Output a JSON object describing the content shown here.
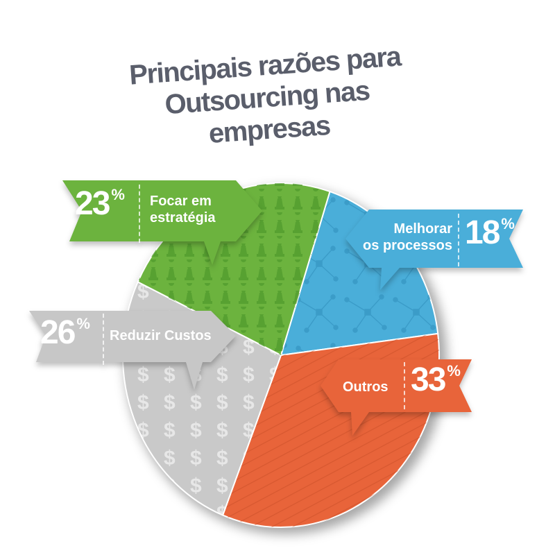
{
  "chart_data": {
    "type": "pie",
    "title": "Principais razões para Outsourcing nas empresas",
    "title_lines": [
      "Principais razões para",
      "Outsourcing nas empresas"
    ],
    "percent_symbol": "%",
    "slices": [
      {
        "label": "Focar em estratégia",
        "label_lines": [
          "Focar em",
          "estratégia"
        ],
        "value": 23,
        "value_text": "23",
        "color": "#6cb33e",
        "pattern": "chess-pawn"
      },
      {
        "label": "Melhorar os processos",
        "label_lines": [
          "Melhorar",
          "os processos"
        ],
        "value": 18,
        "value_text": "18",
        "color": "#4aaed9",
        "pattern": "network"
      },
      {
        "label": "Outros",
        "label_lines": [
          "Outros"
        ],
        "value": 33,
        "value_text": "33",
        "color": "#e8643a",
        "pattern": "stripes"
      },
      {
        "label": "Reduzir Custos",
        "label_lines": [
          "Reduzir Custos"
        ],
        "value": 26,
        "value_text": "26",
        "color": "#c9c9c9",
        "pattern": "dollar"
      }
    ],
    "legend": "callout-tags"
  }
}
